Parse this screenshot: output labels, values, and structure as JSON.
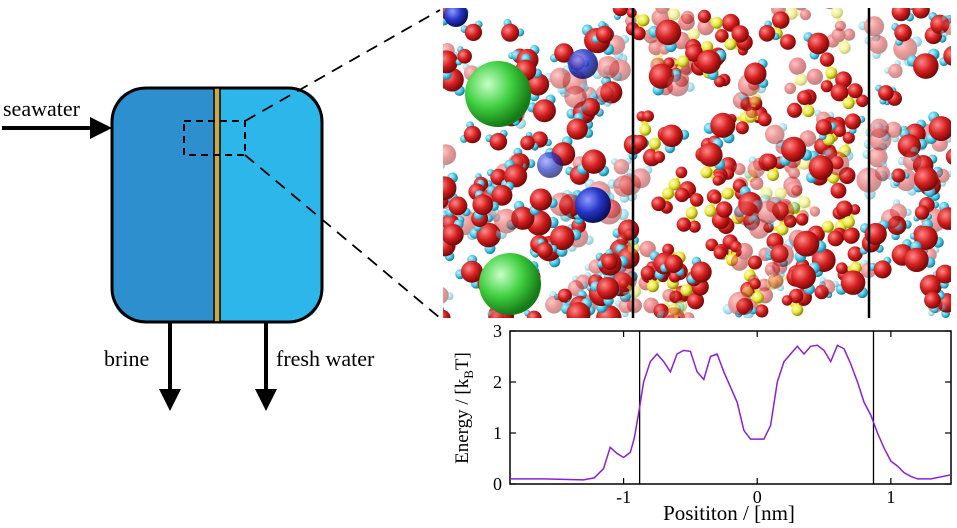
{
  "labels": {
    "seawater": "seawater",
    "brine": "brine",
    "fresh_water": "fresh water"
  },
  "colors": {
    "left_chamber": "#2e8fcf",
    "right_chamber": "#2db6ea",
    "membrane": "#c9a64e",
    "curve": "#8a20d8",
    "oxygen": "#d61f1f",
    "hydrogen": "#43c6e6",
    "silicon": "#e8e63a",
    "chloride": "#3fcf3f",
    "sodium": "#2636c8"
  },
  "chart_data": {
    "type": "line",
    "xlabel": "Posititon / [nm]",
    "ylabel_main": "Energy / [k",
    "ylabel_sub": "B",
    "ylabel_end": "T]",
    "xlim": [
      -1.85,
      1.45
    ],
    "ylim": [
      0,
      3
    ],
    "xticks": [
      "-1",
      "0",
      "1"
    ],
    "yticks": [
      "0",
      "1",
      "2",
      "3"
    ],
    "xtick_values": [
      -1,
      0,
      1
    ],
    "ytick_values": [
      0,
      1,
      2,
      3
    ],
    "membrane_boundaries": [
      -0.88,
      0.87
    ],
    "x": [
      -1.85,
      -1.6,
      -1.3,
      -1.22,
      -1.15,
      -1.1,
      -1.05,
      -1.0,
      -0.95,
      -0.92,
      -0.88,
      -0.85,
      -0.8,
      -0.75,
      -0.7,
      -0.65,
      -0.6,
      -0.55,
      -0.5,
      -0.45,
      -0.4,
      -0.35,
      -0.3,
      -0.25,
      -0.2,
      -0.15,
      -0.1,
      -0.05,
      0.0,
      0.05,
      0.1,
      0.15,
      0.2,
      0.25,
      0.3,
      0.35,
      0.4,
      0.45,
      0.5,
      0.55,
      0.6,
      0.65,
      0.7,
      0.75,
      0.8,
      0.85,
      0.9,
      0.95,
      1.0,
      1.05,
      1.1,
      1.15,
      1.2,
      1.3,
      1.45
    ],
    "values": [
      0.1,
      0.1,
      0.08,
      0.12,
      0.3,
      0.72,
      0.6,
      0.52,
      0.62,
      0.9,
      1.5,
      2.0,
      2.4,
      2.55,
      2.4,
      2.2,
      2.55,
      2.62,
      2.6,
      2.2,
      2.05,
      2.5,
      2.55,
      2.2,
      1.9,
      1.6,
      1.05,
      0.88,
      0.88,
      0.88,
      1.15,
      2.0,
      2.4,
      2.55,
      2.7,
      2.55,
      2.7,
      2.72,
      2.62,
      2.4,
      2.72,
      2.65,
      2.35,
      2.0,
      1.6,
      1.35,
      1.0,
      0.7,
      0.45,
      0.35,
      0.22,
      0.15,
      0.1,
      0.1,
      0.18
    ]
  }
}
